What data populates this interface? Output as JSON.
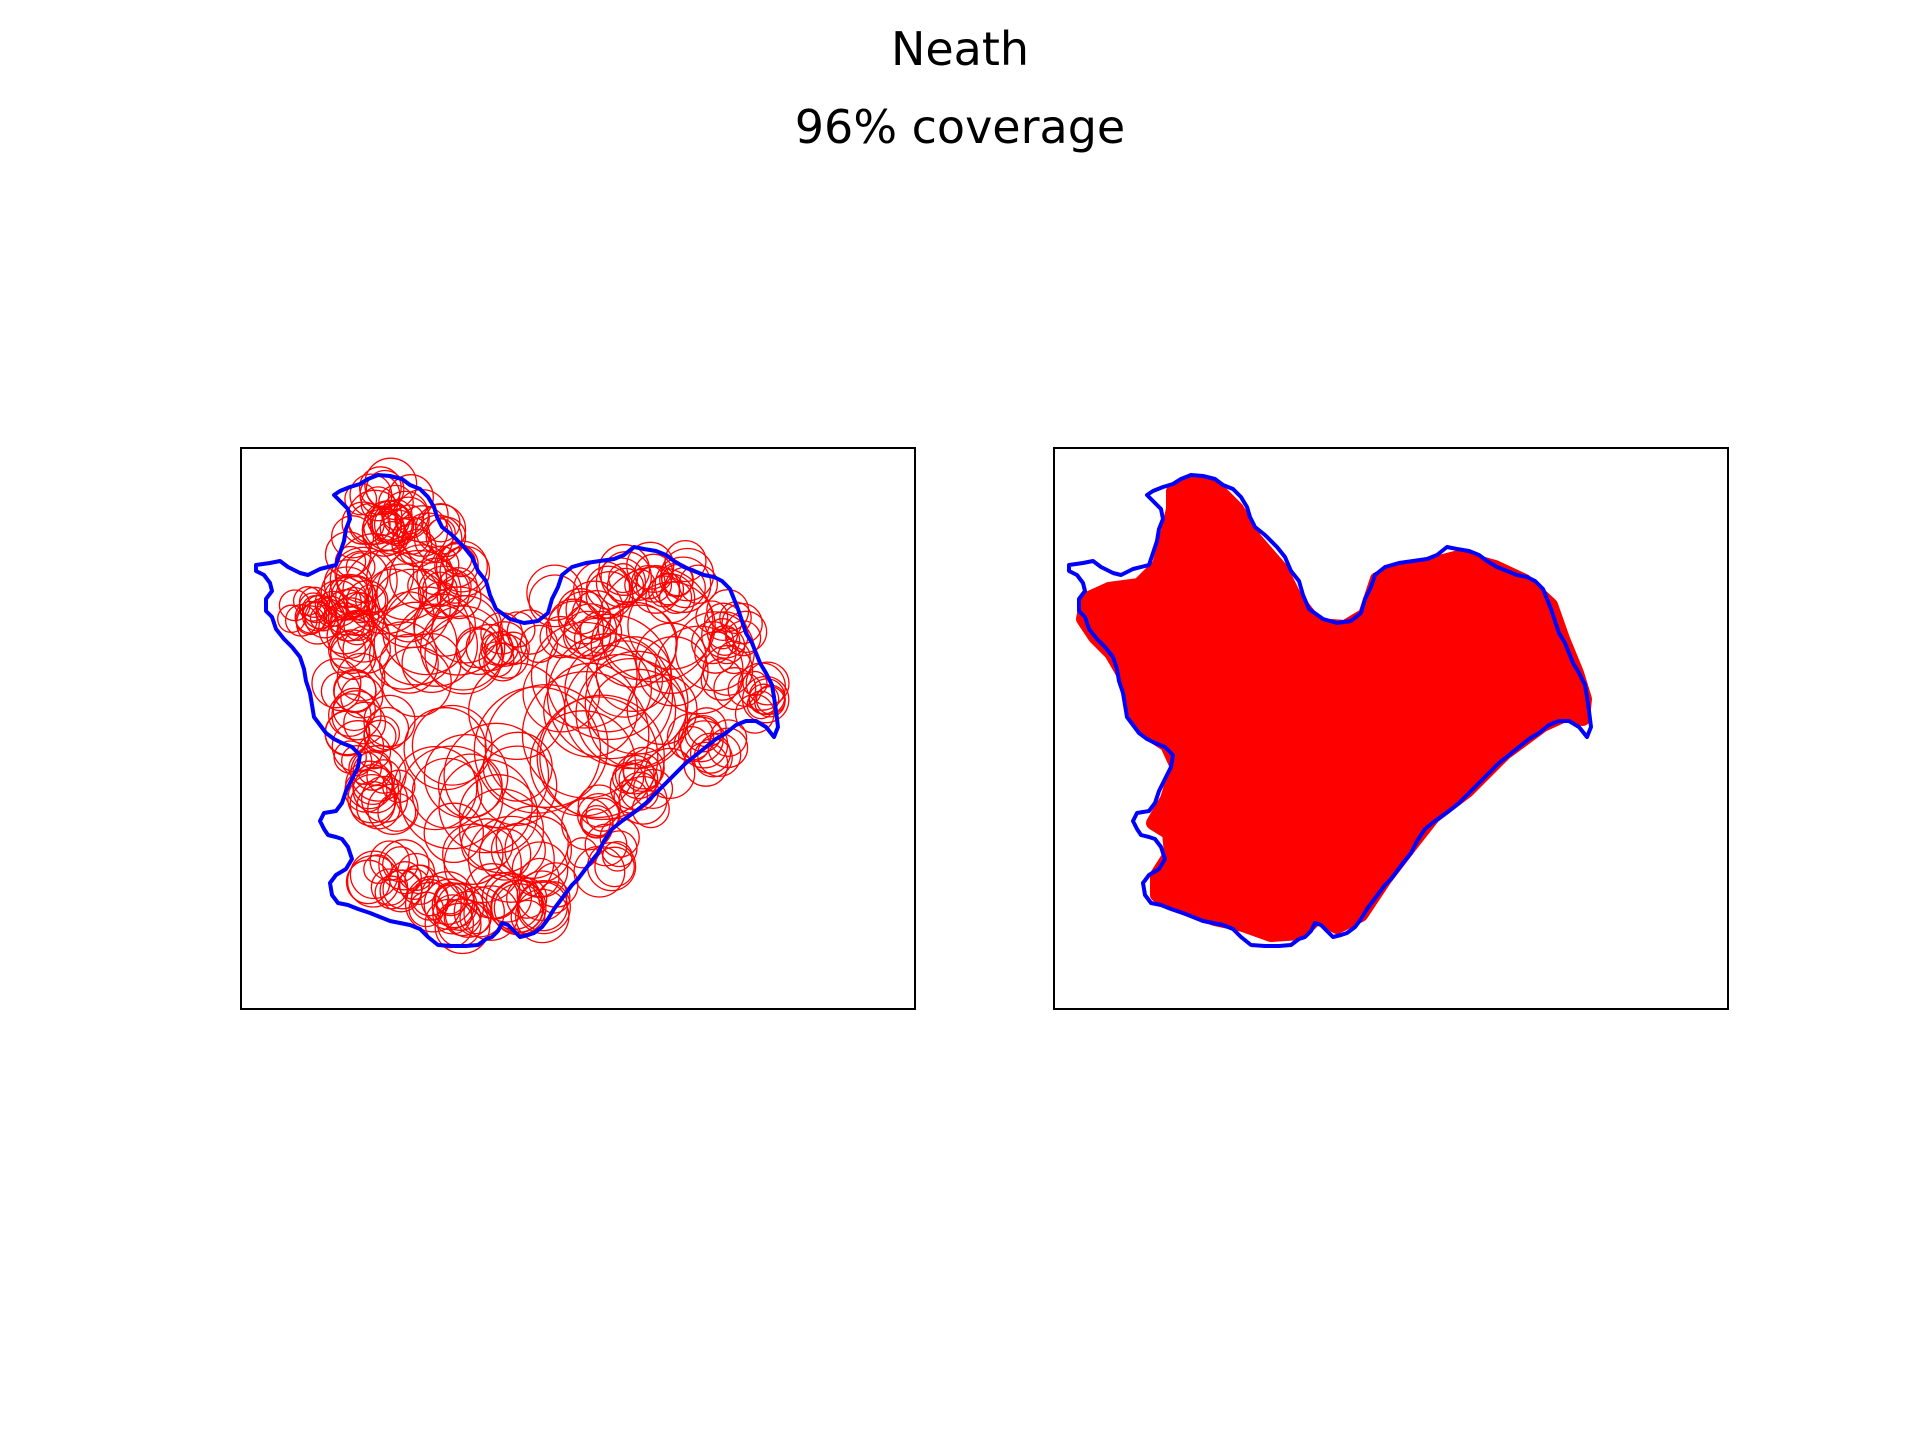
{
  "figure": {
    "title": "Neath",
    "subtitle": "96% coverage"
  },
  "colors": {
    "boundary": "#0000ff",
    "circles": "#ff0000",
    "coverage_fill": "#ff0000",
    "frame": "#000000",
    "background": "#ffffff"
  },
  "panels": [
    {
      "name": "circle-outlines",
      "style": "outline"
    },
    {
      "name": "coverage-union",
      "style": "filled"
    }
  ]
}
